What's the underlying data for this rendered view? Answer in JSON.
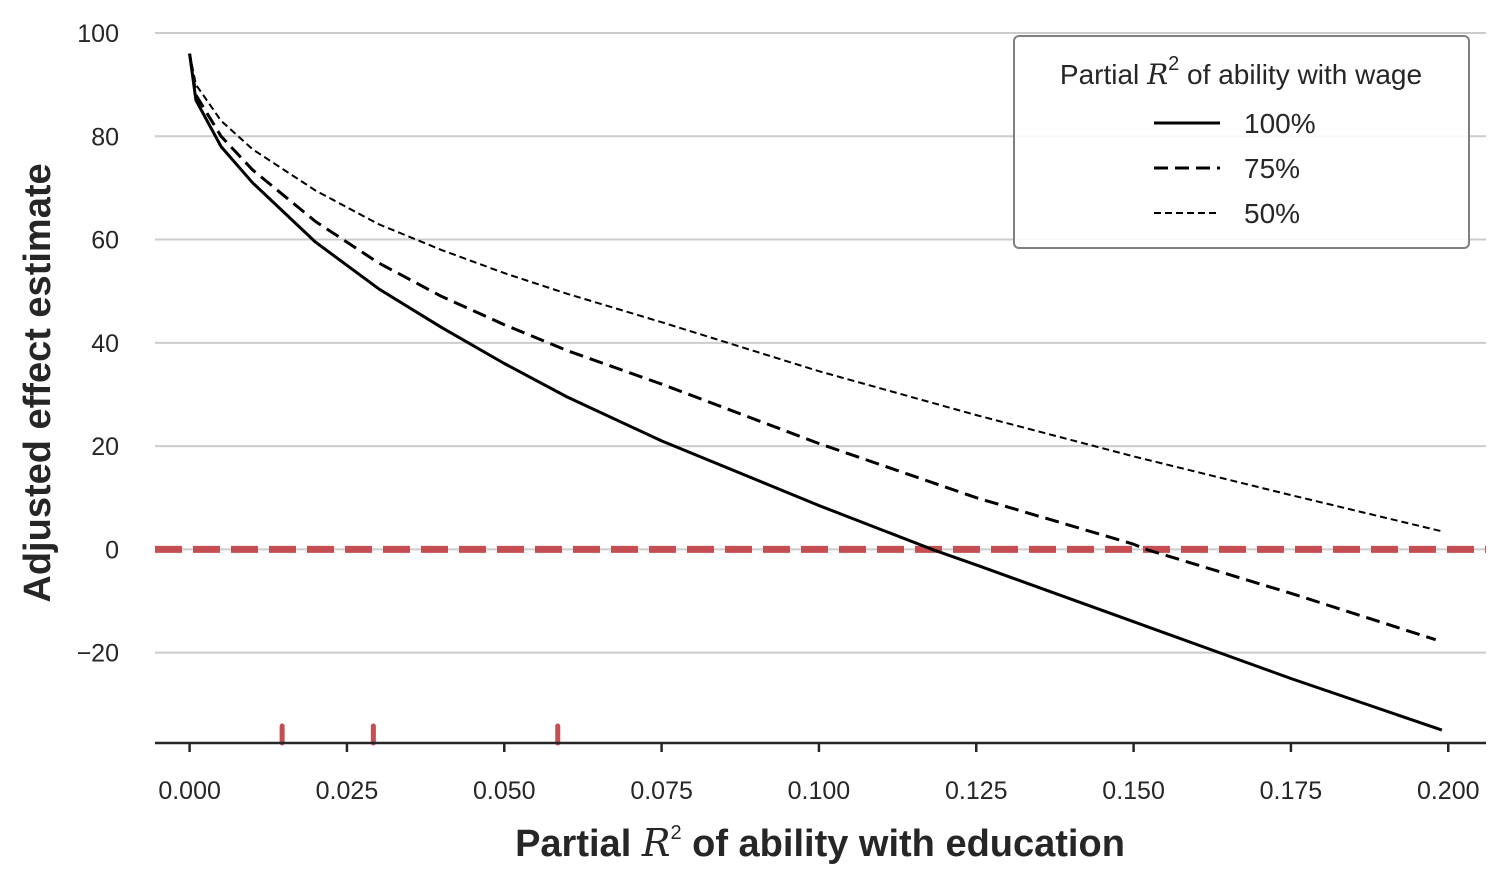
{
  "chart_data": {
    "type": "line",
    "title": "",
    "xlabel": {
      "pre": "Partial ",
      "var": "R",
      "sup": "2",
      "post": " of ability with education"
    },
    "ylabel": "Adjusted effect estimate",
    "xlim": [
      -0.0055,
      0.206
    ],
    "ylim": [
      -37.5,
      100
    ],
    "xticks": [
      0.0,
      0.025,
      0.05,
      0.075,
      0.1,
      0.125,
      0.15,
      0.175,
      0.2
    ],
    "xtick_labels": [
      "0.000",
      "0.025",
      "0.050",
      "0.075",
      "0.100",
      "0.125",
      "0.150",
      "0.175",
      "0.200"
    ],
    "yticks": [
      -20,
      0,
      20,
      40,
      60,
      80,
      100
    ],
    "ytick_labels": [
      "−20",
      "0",
      "20",
      "40",
      "60",
      "80",
      "100"
    ],
    "grid": "horizontal",
    "legend": {
      "placement": "top-right",
      "title": {
        "pre": "Partial ",
        "var": "R",
        "sup": "2",
        "post": " of ability with wage"
      }
    },
    "reference_line": {
      "y": 0,
      "color": "#c44e52",
      "style": "dashed"
    },
    "rug_marks": {
      "x": [
        0.0147,
        0.0292,
        0.0585
      ],
      "color": "#c44e52"
    },
    "series": [
      {
        "name": "100%",
        "style": "solid",
        "x": [
          0.0,
          0.001,
          0.005,
          0.01,
          0.02,
          0.03,
          0.04,
          0.05,
          0.06,
          0.075,
          0.1,
          0.118,
          0.125,
          0.15,
          0.175,
          0.199
        ],
        "y": [
          96,
          87,
          78,
          71,
          59.5,
          50.5,
          43,
          36,
          29.5,
          21,
          8.5,
          0,
          -3,
          -14,
          -25,
          -35
        ]
      },
      {
        "name": "75%",
        "style": "dashed",
        "x": [
          0.0,
          0.001,
          0.005,
          0.01,
          0.02,
          0.03,
          0.04,
          0.05,
          0.06,
          0.075,
          0.1,
          0.125,
          0.15,
          0.152,
          0.175,
          0.198
        ],
        "y": [
          96,
          88,
          80,
          73.5,
          63.5,
          55.5,
          49,
          43.5,
          38.5,
          32,
          20.5,
          10,
          1,
          0,
          -8.5,
          -17.5
        ]
      },
      {
        "name": "50%",
        "style": "short-dashed",
        "x": [
          0.0,
          0.001,
          0.005,
          0.01,
          0.02,
          0.03,
          0.04,
          0.05,
          0.06,
          0.075,
          0.1,
          0.125,
          0.15,
          0.175,
          0.199
        ],
        "y": [
          96,
          90,
          83,
          77.5,
          69.5,
          63,
          58,
          53.5,
          49.5,
          44,
          34.5,
          26,
          18,
          10.5,
          3.5
        ]
      }
    ],
    "colors": {
      "series": "#000000",
      "grid": "#cccccc",
      "axis": "#262626",
      "reference": "#c44e52"
    }
  }
}
